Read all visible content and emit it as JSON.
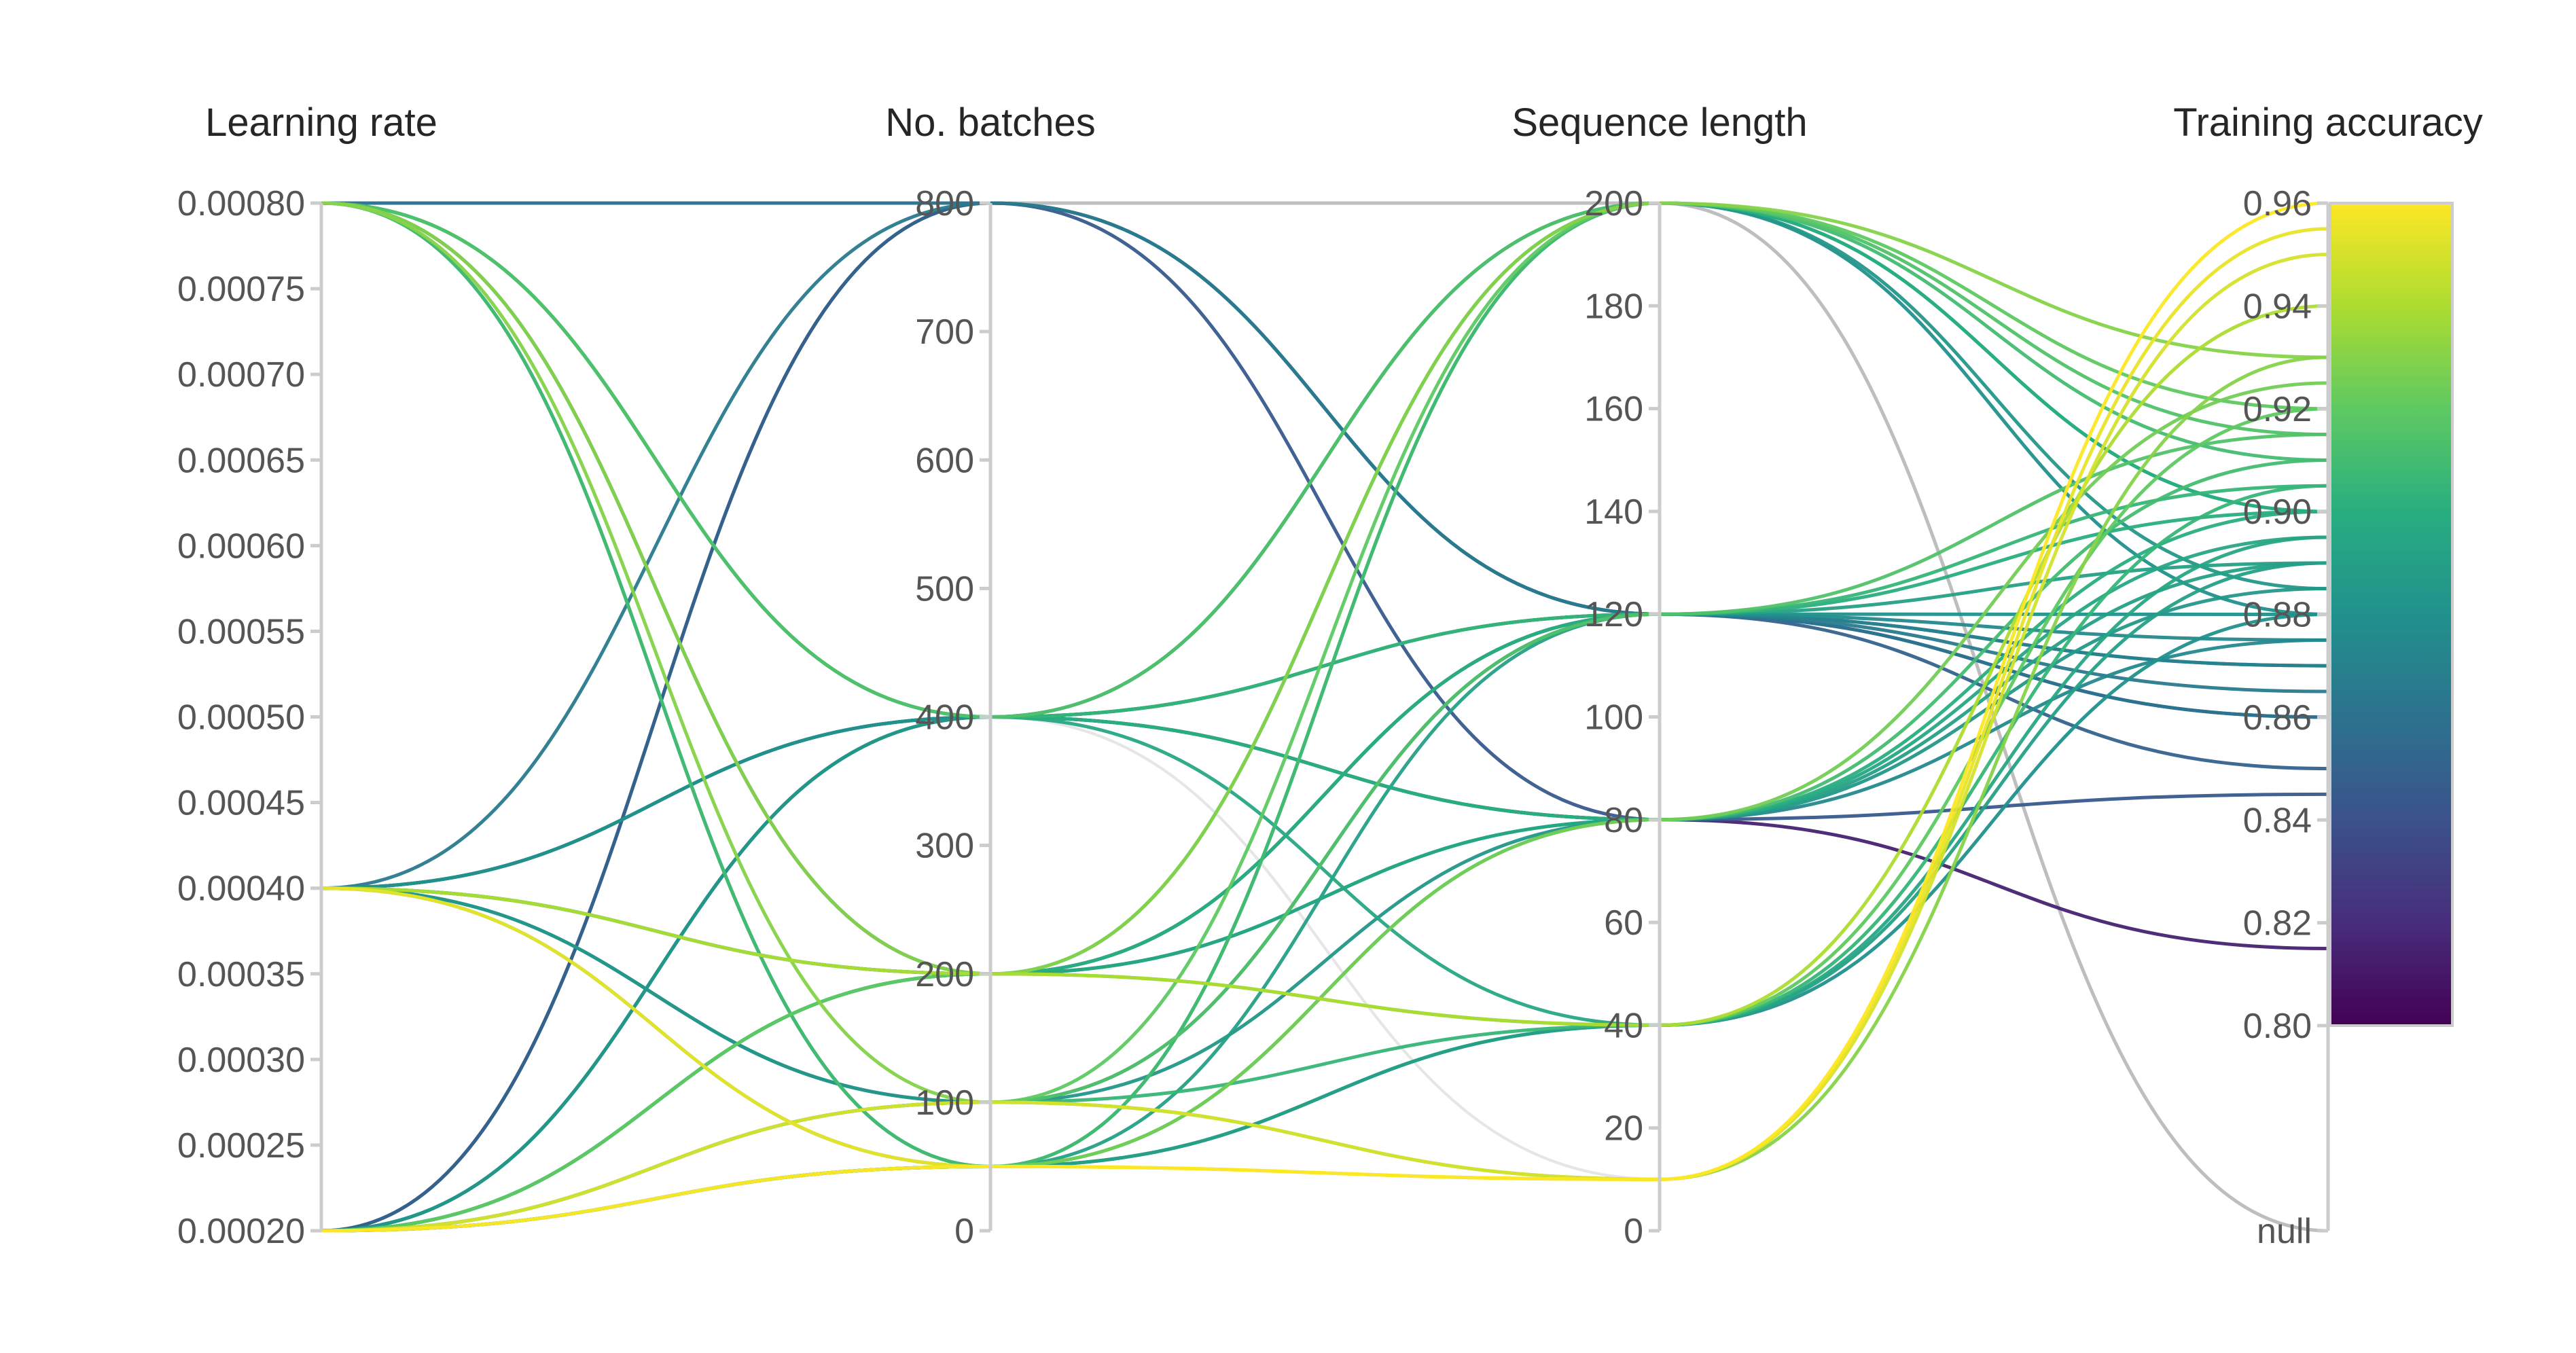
{
  "chart_data": {
    "type": "parallel_coordinates",
    "axes": [
      {
        "key": "lr",
        "title": "Learning rate",
        "range": [
          0.0002,
          0.0008
        ],
        "ticks": [
          "0.00080",
          "0.00075",
          "0.00070",
          "0.00065",
          "0.00060",
          "0.00055",
          "0.00050",
          "0.00045",
          "0.00040",
          "0.00035",
          "0.00030",
          "0.00025",
          "0.00020"
        ]
      },
      {
        "key": "batches",
        "title": "No. batches",
        "range": [
          0,
          800
        ],
        "ticks": [
          "800",
          "700",
          "600",
          "500",
          "400",
          "300",
          "200",
          "100",
          "0"
        ]
      },
      {
        "key": "seq",
        "title": "Sequence length",
        "range": [
          0,
          200
        ],
        "ticks": [
          "200",
          "180",
          "160",
          "140",
          "120",
          "100",
          "80",
          "60",
          "40",
          "20",
          "0"
        ]
      },
      {
        "key": "acc",
        "title": "Training accuracy",
        "range": [
          0.8,
          0.96
        ],
        "ticks": [
          "0.96",
          "0.94",
          "0.92",
          "0.90",
          "0.88",
          "0.86",
          "0.84",
          "0.82",
          "0.80",
          "null"
        ]
      }
    ],
    "colorscale": {
      "name": "viridis",
      "range": [
        0.8,
        0.96
      ],
      "stops": [
        "#440154",
        "#472d7b",
        "#3b528b",
        "#2c728e",
        "#21918c",
        "#28ae80",
        "#5ec962",
        "#addc30",
        "#fde725"
      ]
    },
    "null_color": "#bbbbbb",
    "faint_color": "#e6e6e6",
    "lines": [
      {
        "lr": 0.0008,
        "batches": 800,
        "seq": 200,
        "acc": null
      },
      {
        "lr": 0.0008,
        "batches": 400,
        "seq": 200,
        "acc": 0.915
      },
      {
        "lr": 0.0008,
        "batches": 400,
        "seq": 120,
        "acc": 0.905
      },
      {
        "lr": 0.0008,
        "batches": 400,
        "seq": 80,
        "acc": 0.9
      },
      {
        "lr": 0.0008,
        "batches": 400,
        "seq": 40,
        "acc": 0.895
      },
      {
        "lr": 0.0008,
        "batches": 200,
        "seq": 120,
        "acc": 0.87
      },
      {
        "lr": 0.0008,
        "batches": 200,
        "seq": 200,
        "acc": 0.93
      },
      {
        "lr": 0.0008,
        "batches": 100,
        "seq": 10,
        "acc": 0.93
      },
      {
        "lr": 0.0008,
        "batches": 50,
        "seq": 80,
        "acc": 0.91
      },
      {
        "lr": 0.0008,
        "batches": 50,
        "seq": 40,
        "acc": 0.89
      },
      {
        "lr": 0.0004,
        "batches": 800,
        "seq": 120,
        "acc": 0.865
      },
      {
        "lr": 0.0004,
        "batches": 400,
        "seq": 80,
        "acc": 0.815
      },
      {
        "lr": 0.0004,
        "batches": 400,
        "seq": 120,
        "acc": 0.875
      },
      {
        "lr": 0.0004,
        "batches": 400,
        "seq": 200,
        "acc": 0.88
      },
      {
        "lr": 0.0004,
        "batches": 200,
        "seq": 40,
        "acc": 0.94
      },
      {
        "lr": 0.0004,
        "batches": 200,
        "seq": 120,
        "acc": 0.9
      },
      {
        "lr": 0.0004,
        "batches": 200,
        "seq": 80,
        "acc": 0.895
      },
      {
        "lr": 0.0004,
        "batches": 100,
        "seq": 120,
        "acc": 0.87
      },
      {
        "lr": 0.0004,
        "batches": 50,
        "seq": 10,
        "acc": 0.955
      },
      {
        "lr": 0.0004,
        "batches": 50,
        "seq": 200,
        "acc": 0.91
      },
      {
        "lr": 0.0002,
        "batches": 800,
        "seq": 80,
        "acc": 0.845
      },
      {
        "lr": 0.0002,
        "batches": 400,
        "seq": 120,
        "acc": 0.88
      },
      {
        "lr": 0.0002,
        "batches": 400,
        "seq": 200,
        "acc": 0.885
      },
      {
        "lr": 0.0002,
        "batches": 400,
        "seq": 80,
        "acc": 0.875
      },
      {
        "lr": 0.0002,
        "batches": 200,
        "seq": 40,
        "acc": 0.92
      },
      {
        "lr": 0.0002,
        "batches": 200,
        "seq": 200,
        "acc": 0.9
      },
      {
        "lr": 0.0002,
        "batches": 200,
        "seq": 80,
        "acc": 0.89
      },
      {
        "lr": 0.0002,
        "batches": 100,
        "seq": 10,
        "acc": 0.95
      },
      {
        "lr": 0.0002,
        "batches": 100,
        "seq": 120,
        "acc": 0.915
      },
      {
        "lr": 0.0002,
        "batches": 100,
        "seq": 200,
        "acc": 0.92
      },
      {
        "lr": 0.0002,
        "batches": 100,
        "seq": 40,
        "acc": 0.905
      },
      {
        "lr": 0.0002,
        "batches": 50,
        "seq": 10,
        "acc": 0.96
      },
      {
        "lr": 0.0002,
        "batches": 50,
        "seq": 120,
        "acc": 0.89
      },
      {
        "lr": 0.0002,
        "batches": 50,
        "seq": 200,
        "acc": 0.9
      },
      {
        "lr": 0.0002,
        "batches": 50,
        "seq": 40,
        "acc": 0.88
      },
      {
        "lr": 0.0002,
        "batches": 50,
        "seq": 80,
        "acc": 0.925
      },
      {
        "lr": 0.0002,
        "batches": 200,
        "seq": 120,
        "acc": 0.86
      },
      {
        "lr": 0.0002,
        "batches": 800,
        "seq": 120,
        "acc": 0.85
      },
      {
        "lr": 0.0004,
        "batches": 100,
        "seq": 80,
        "acc": 0.885
      },
      {
        "lr": 0.0008,
        "batches": 800,
        "seq": 120,
        "acc": 0.86
      }
    ],
    "faint_lines": [
      {
        "lr": 0.0008,
        "batches": 400,
        "seq": 10
      },
      {
        "lr": 0.0008,
        "batches": 200,
        "seq": 40
      },
      {
        "lr": 0.0008,
        "batches": 100,
        "seq": 80
      },
      {
        "lr": 0.0008,
        "batches": 50,
        "seq": 10
      },
      {
        "lr": 0.0004,
        "batches": 100,
        "seq": 10
      },
      {
        "lr": 0.0004,
        "batches": 50,
        "seq": 40
      },
      {
        "lr": 0.0002,
        "batches": 400,
        "seq": 10
      }
    ]
  }
}
